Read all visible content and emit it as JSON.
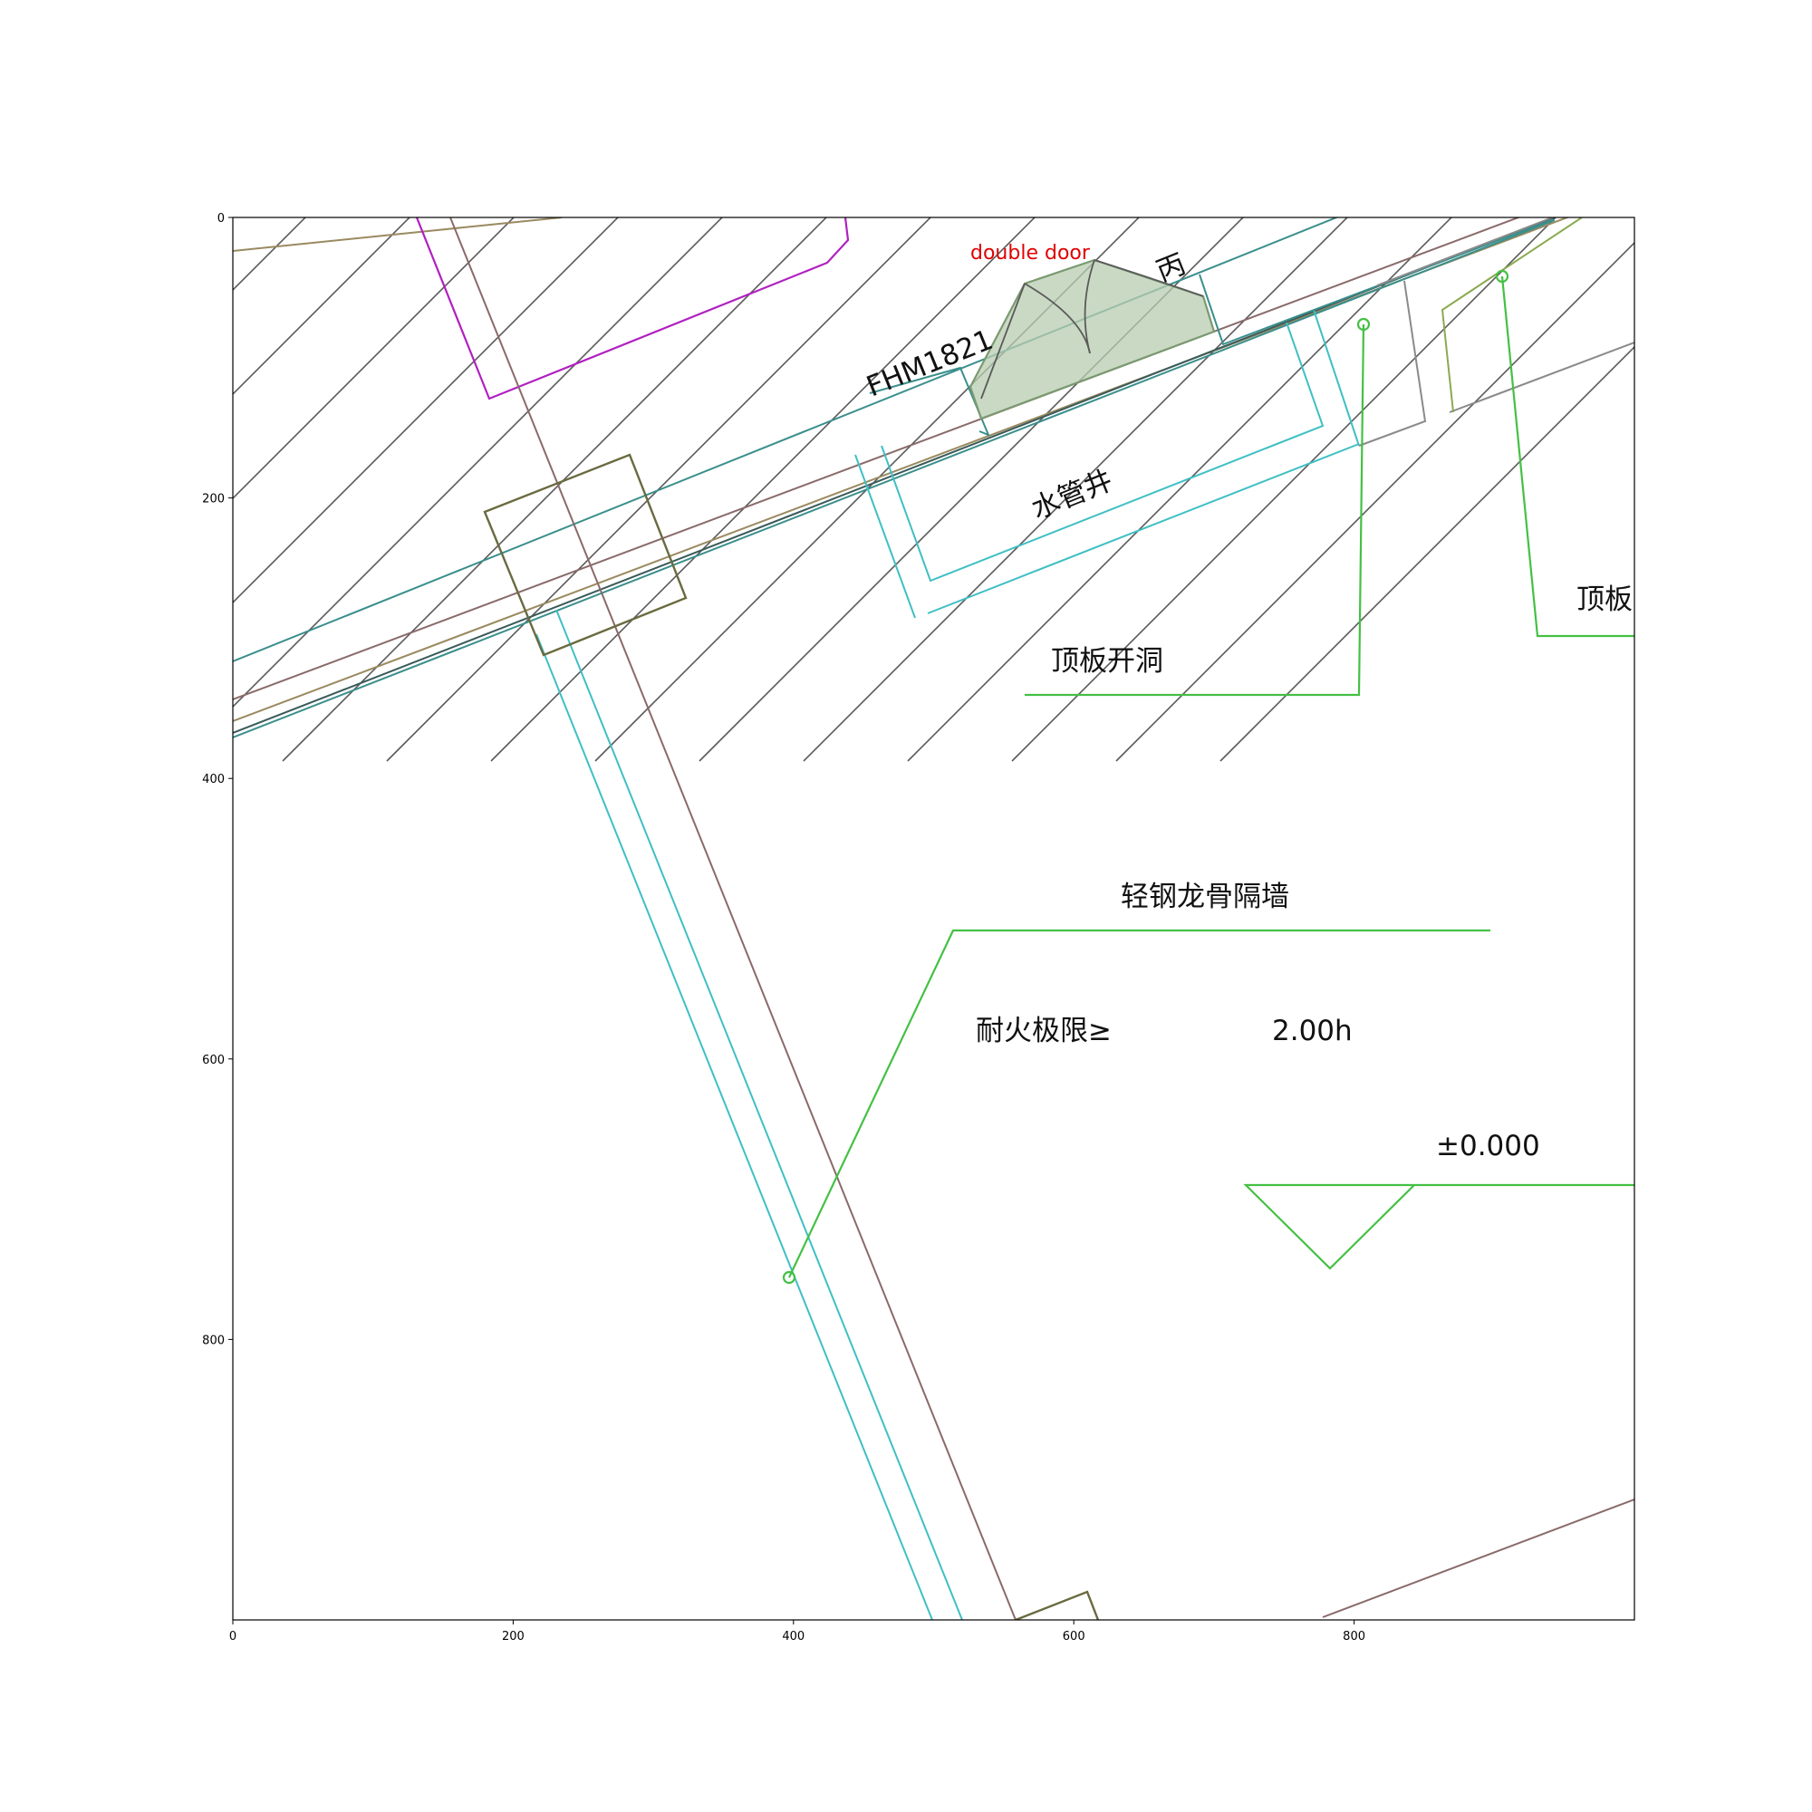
{
  "figure": {
    "x_ticks": [
      "0",
      "200",
      "400",
      "600",
      "800"
    ],
    "y_ticks": [
      "0",
      "200",
      "400",
      "600",
      "800"
    ]
  },
  "annotation": {
    "label": "double door",
    "color": "#e00000"
  },
  "labels": {
    "door_code": "FHM1821",
    "door_class": "丙",
    "water_shaft": "水管井",
    "roof_slab_opening": "顶板开洞",
    "roof_slab": "顶板",
    "partition_wall": "轻钢龙骨隔墙",
    "fire_resistance": "耐火极限≥",
    "fire_rating_value": "2.00h",
    "elevation": "±0.000"
  },
  "colors": {
    "hatch": "#5a5a5a",
    "cyan_wall": "#3fbfc4",
    "teal_wall": "#3a8f8c",
    "brown_line": "#8a6a6a",
    "tan_line": "#9a8a60",
    "magenta": "#b020c0",
    "olive_box": "#6a6a40",
    "leader_green": "#44c044",
    "door_fill": "#b8ccb0",
    "door_edge": "#7a9a70"
  }
}
